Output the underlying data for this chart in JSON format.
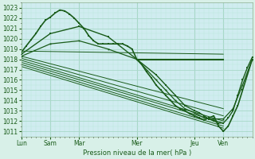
{
  "xlabel": "Pression niveau de la mer( hPa )",
  "bg_color": "#d8f0e8",
  "plot_bg_color": "#d0ecf0",
  "grid_major_color": "#a8d8c8",
  "grid_minor_color": "#b8e8d8",
  "line_color": "#1a5c1a",
  "ylim": [
    1011,
    1023
  ],
  "yticks": [
    1011,
    1012,
    1013,
    1014,
    1015,
    1016,
    1017,
    1018,
    1019,
    1020,
    1021,
    1022,
    1023
  ],
  "xlim": [
    0,
    96
  ],
  "xtick_positions": [
    0,
    12,
    24,
    48,
    72,
    84
  ],
  "xtick_labels": [
    "Lun",
    "Sam",
    "Mar",
    "Mer",
    "Jeu",
    "Ven"
  ],
  "fan_lines": [
    {
      "x0": 0,
      "y0": 1018.8,
      "x1": 84,
      "y1": 1018.5
    },
    {
      "x0": 0,
      "y0": 1018.3,
      "x1": 84,
      "y1": 1013.2
    },
    {
      "x0": 0,
      "y0": 1018.1,
      "x1": 84,
      "y1": 1012.5
    },
    {
      "x0": 0,
      "y0": 1017.9,
      "x1": 84,
      "y1": 1012.0
    },
    {
      "x0": 0,
      "y0": 1017.7,
      "x1": 84,
      "y1": 1011.8
    },
    {
      "x0": 0,
      "y0": 1017.5,
      "x1": 84,
      "y1": 1011.5
    },
    {
      "x0": 0,
      "y0": 1017.3,
      "x1": 84,
      "y1": 1011.3
    }
  ],
  "curve_main_x": [
    0,
    2,
    4,
    6,
    8,
    10,
    12,
    14,
    16,
    18,
    20,
    22,
    24,
    26,
    28,
    30,
    32,
    34,
    36,
    38,
    40,
    42,
    44,
    46,
    48,
    50,
    52,
    54,
    56,
    58,
    60,
    62,
    64,
    66,
    68,
    70,
    72,
    74,
    76,
    78,
    80,
    82,
    84,
    86,
    88,
    90,
    92,
    94,
    96
  ],
  "curve_main_y": [
    1018.7,
    1019.3,
    1019.9,
    1020.5,
    1021.2,
    1021.8,
    1022.1,
    1022.5,
    1022.8,
    1022.7,
    1022.4,
    1022.0,
    1021.5,
    1021.0,
    1020.3,
    1019.8,
    1019.5,
    1019.5,
    1019.5,
    1019.5,
    1019.5,
    1019.5,
    1019.3,
    1019.0,
    1018.0,
    1017.5,
    1016.8,
    1016.2,
    1015.5,
    1015.0,
    1014.5,
    1014.0,
    1013.5,
    1013.2,
    1013.0,
    1012.7,
    1012.5,
    1012.3,
    1012.1,
    1012.3,
    1012.5,
    1011.5,
    1011.0,
    1011.5,
    1012.5,
    1013.5,
    1015.0,
    1016.5,
    1018.0
  ],
  "curve2_x": [
    0,
    12,
    24,
    36,
    48,
    56,
    60,
    64,
    68,
    72,
    74,
    76,
    78,
    80,
    82,
    84,
    86,
    88,
    90,
    92,
    94,
    96
  ],
  "curve2_y": [
    1018.5,
    1020.5,
    1021.2,
    1020.2,
    1018.0,
    1016.5,
    1015.5,
    1014.5,
    1013.5,
    1013.0,
    1012.8,
    1012.5,
    1012.2,
    1012.0,
    1011.8,
    1011.8,
    1012.3,
    1013.0,
    1014.5,
    1016.0,
    1017.2,
    1018.2
  ],
  "curve3_x": [
    0,
    12,
    24,
    36,
    48,
    56,
    60,
    64,
    68,
    72,
    76,
    80,
    84,
    88,
    92,
    96
  ],
  "curve3_y": [
    1018.3,
    1019.5,
    1019.8,
    1019.0,
    1018.0,
    1016.0,
    1015.0,
    1014.0,
    1013.2,
    1012.8,
    1012.3,
    1012.2,
    1012.2,
    1013.2,
    1015.5,
    1018.0
  ],
  "flat_line_x": [
    48,
    84
  ],
  "flat_line_y": [
    1018.0,
    1018.0
  ]
}
